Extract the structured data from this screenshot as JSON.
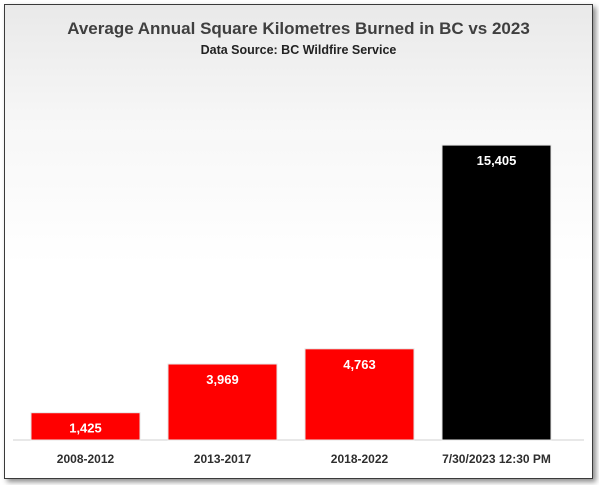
{
  "chart_data": {
    "type": "bar",
    "title": "Average Annual Square Kilometres Burned in BC vs 2023",
    "subtitle": "Data Source: BC Wildfire Service",
    "categories": [
      "2008-2012",
      "2013-2017",
      "2018-2022",
      "7/30/2023 12:30 PM"
    ],
    "values": [
      1425,
      3969,
      4763,
      15405
    ],
    "value_labels": [
      "1,425",
      "3,969",
      "4,763",
      "15,405"
    ],
    "bar_colors": [
      "#ff0000",
      "#ff0000",
      "#ff0000",
      "#000000"
    ],
    "ylim": [
      0,
      17500
    ],
    "grid": false,
    "legend": "none"
  }
}
